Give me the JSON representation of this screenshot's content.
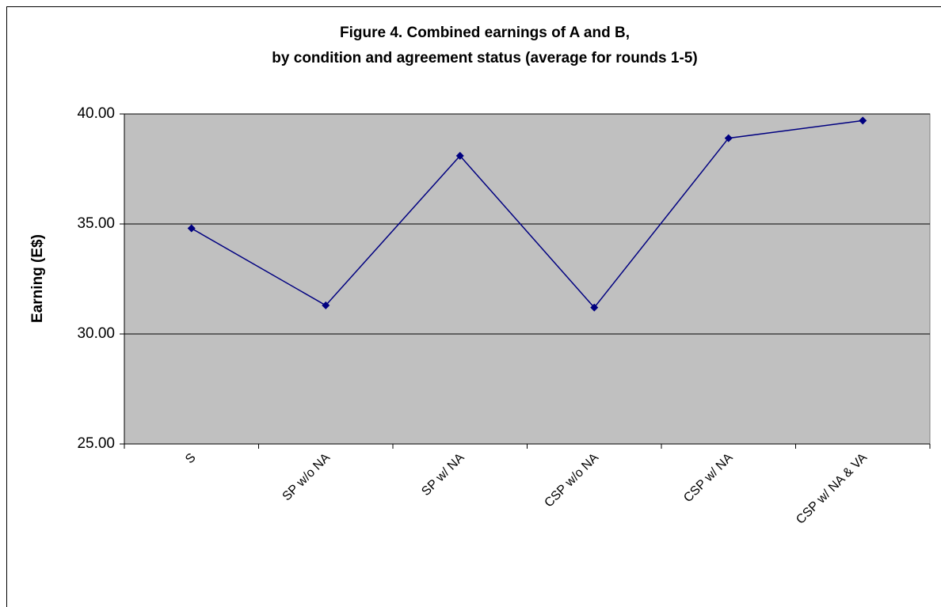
{
  "chart_data": {
    "type": "line",
    "title": [
      "Figure 4. Combined earnings of A and B,",
      "by condition and agreement status (average for rounds 1-5)"
    ],
    "ylabel": "Earning (E$)",
    "categories": [
      "S",
      "SP w/o NA",
      "SP w/ NA",
      "CSP w/o NA",
      "CSP w/ NA",
      "CSP w/ NA & VA"
    ],
    "series": [
      {
        "name": "Combined earnings",
        "color": "#000080",
        "values": [
          34.8,
          31.3,
          38.1,
          31.2,
          38.9,
          39.7
        ]
      }
    ],
    "ylim": [
      25,
      40
    ],
    "yticks": [
      {
        "value": 25,
        "label": "25.00"
      },
      {
        "value": 30,
        "label": "30.00"
      },
      {
        "value": 35,
        "label": "35.00"
      },
      {
        "value": 40,
        "label": "40.00"
      }
    ],
    "grid": true,
    "plot_background": "#c0c0c0"
  }
}
